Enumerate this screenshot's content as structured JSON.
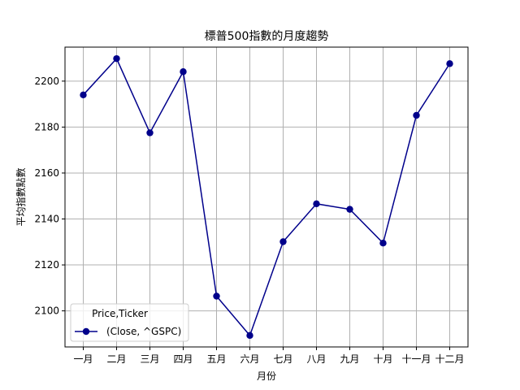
{
  "chart_data": {
    "type": "line",
    "title": "標普500指數的月度趨勢",
    "xlabel": "月份",
    "ylabel": "平均指數點數",
    "categories": [
      "一月",
      "二月",
      "三月",
      "四月",
      "五月",
      "六月",
      "七月",
      "八月",
      "九月",
      "十月",
      "十一月",
      "十二月"
    ],
    "series": [
      {
        "name": "(Close, ^GSPC)",
        "values": [
          2194.0,
          2209.8,
          2177.5,
          2204.1,
          2106.4,
          2089.3,
          2130.1,
          2146.6,
          2144.2,
          2129.5,
          2185.1,
          2207.6
        ],
        "color": "#00008b",
        "marker": "circle"
      }
    ],
    "yticks": [
      2100,
      2120,
      2140,
      2160,
      2180,
      2200
    ],
    "ylim": [
      2084.3,
      2214.8
    ],
    "grid": true,
    "legend": {
      "title": "Price,Ticker",
      "position": "lower-left"
    }
  }
}
